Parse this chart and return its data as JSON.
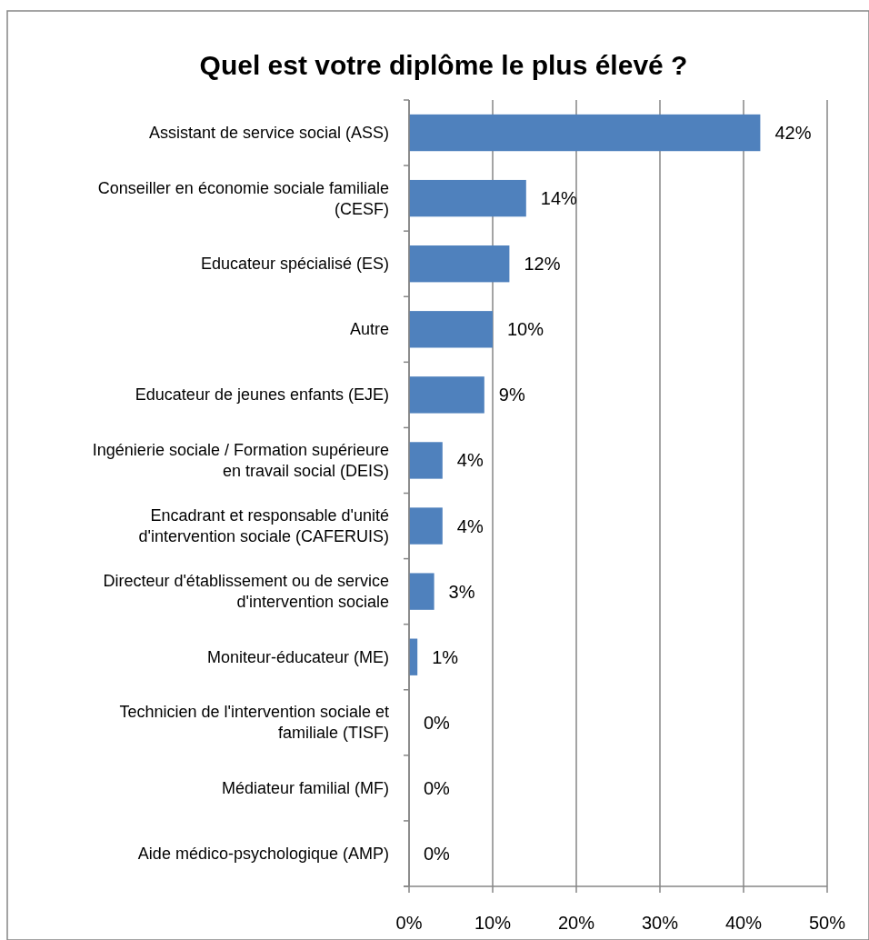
{
  "chart_data": {
    "type": "bar",
    "orientation": "horizontal",
    "title": "Quel est votre diplôme le plus élevé ?",
    "categories": [
      "Assistant de service social (ASS)",
      "Conseiller en économie sociale familiale (CESF)",
      "Educateur spécialisé (ES)",
      "Autre",
      "Educateur de jeunes enfants (EJE)",
      "Ingénierie sociale / Formation supérieure en travail social (DEIS)",
      "Encadrant et responsable d'unité d'intervention sociale (CAFERUIS)",
      "Directeur d'établissement ou de service d'intervention sociale",
      "Moniteur-éducateur (ME)",
      "Technicien de l'intervention sociale et familiale (TISF)",
      "Médiateur familial (MF)",
      "Aide médico-psychologique (AMP)"
    ],
    "values": [
      42,
      14,
      12,
      10,
      9,
      4,
      4,
      3,
      1,
      0,
      0,
      0
    ],
    "value_labels": [
      "42%",
      "14%",
      "12%",
      "10%",
      "9%",
      "4%",
      "4%",
      "3%",
      "1%",
      "0%",
      "0%",
      "0%"
    ],
    "color": "#4f81bd",
    "xlim": [
      0,
      50
    ],
    "xticks": [
      {
        "value": 0,
        "label": "0%"
      },
      {
        "value": 10,
        "label": "10%"
      },
      {
        "value": 20,
        "label": "20%"
      },
      {
        "value": 30,
        "label": "30%"
      },
      {
        "value": 40,
        "label": "40%"
      },
      {
        "value": 50,
        "label": "50%"
      }
    ],
    "grid": "x"
  }
}
